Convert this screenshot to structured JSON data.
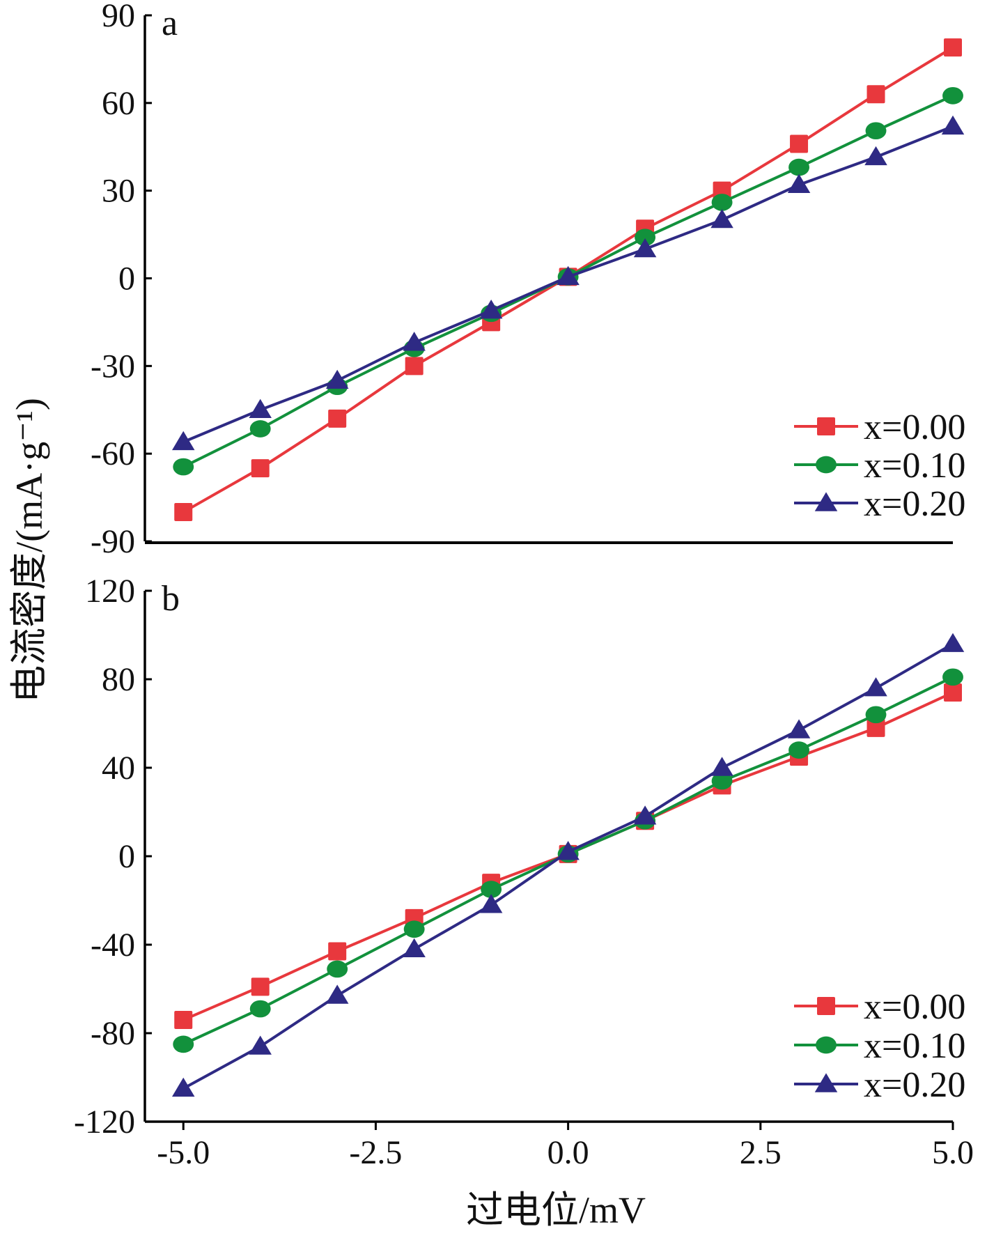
{
  "figure": {
    "y_axis_title": "电流密度/(mA·g⁻¹)",
    "x_axis_title": "过电位/mV"
  },
  "chart_data": [
    {
      "type": "line",
      "panel_label": "a",
      "x": [
        -5,
        -4,
        -3,
        -2,
        -1,
        0,
        1,
        2,
        3,
        4,
        5
      ],
      "xlim": [
        -5.5,
        5.0
      ],
      "ylim": [
        -90,
        90
      ],
      "x_ticks": [
        "-5.0",
        "-2.5",
        "0.0",
        "2.5",
        "5.0"
      ],
      "x_tick_values": [
        -5,
        -2.5,
        0,
        2.5,
        5
      ],
      "y_ticks": [
        "90",
        "60",
        "30",
        "0",
        "-30",
        "-60",
        "-90"
      ],
      "y_tick_values": [
        90,
        60,
        30,
        0,
        -30,
        -60,
        -90
      ],
      "legend_position": "bottom-right",
      "series": [
        {
          "name": "x=0.00",
          "color": "#e8383d",
          "marker": "square",
          "values": [
            -80,
            -65,
            -48,
            -30,
            -15,
            0.5,
            17,
            30,
            46,
            63,
            79
          ]
        },
        {
          "name": "x=0.10",
          "color": "#12913c",
          "marker": "circle",
          "values": [
            -64.5,
            -51.5,
            -37,
            -24,
            -12,
            0.5,
            14,
            26,
            38,
            50.5,
            62.5
          ]
        },
        {
          "name": "x=0.20",
          "color": "#2e2a84",
          "marker": "triangle",
          "values": [
            -56,
            -45,
            -35,
            -22,
            -11,
            0.5,
            10,
            20,
            32,
            41.5,
            52
          ]
        }
      ]
    },
    {
      "type": "line",
      "panel_label": "b",
      "x": [
        -5,
        -4,
        -3,
        -2,
        -1,
        0,
        1,
        2,
        3,
        4,
        5
      ],
      "xlim": [
        -5.5,
        5.0
      ],
      "ylim": [
        -120,
        120
      ],
      "x_ticks": [
        "-5.0",
        "-2.5",
        "0.0",
        "2.5",
        "5.0"
      ],
      "x_tick_values": [
        -5,
        -2.5,
        0,
        2.5,
        5
      ],
      "y_ticks": [
        "120",
        "80",
        "40",
        "0",
        "-40",
        "-80",
        "-120"
      ],
      "y_tick_values": [
        120,
        80,
        40,
        0,
        -40,
        -80,
        -120
      ],
      "legend_position": "bottom-right",
      "series": [
        {
          "name": "x=0.00",
          "color": "#e8383d",
          "marker": "square",
          "values": [
            -74,
            -59,
            -43,
            -28,
            -12,
            1,
            16,
            32,
            45,
            58,
            74
          ]
        },
        {
          "name": "x=0.10",
          "color": "#12913c",
          "marker": "circle",
          "values": [
            -85,
            -69,
            -51,
            -33,
            -15,
            1,
            16,
            34,
            48,
            64,
            81
          ]
        },
        {
          "name": "x=0.20",
          "color": "#2e2a84",
          "marker": "triangle",
          "values": [
            -105,
            -86,
            -63,
            -42,
            -22,
            2,
            18,
            40,
            57,
            76,
            96
          ]
        }
      ]
    }
  ]
}
